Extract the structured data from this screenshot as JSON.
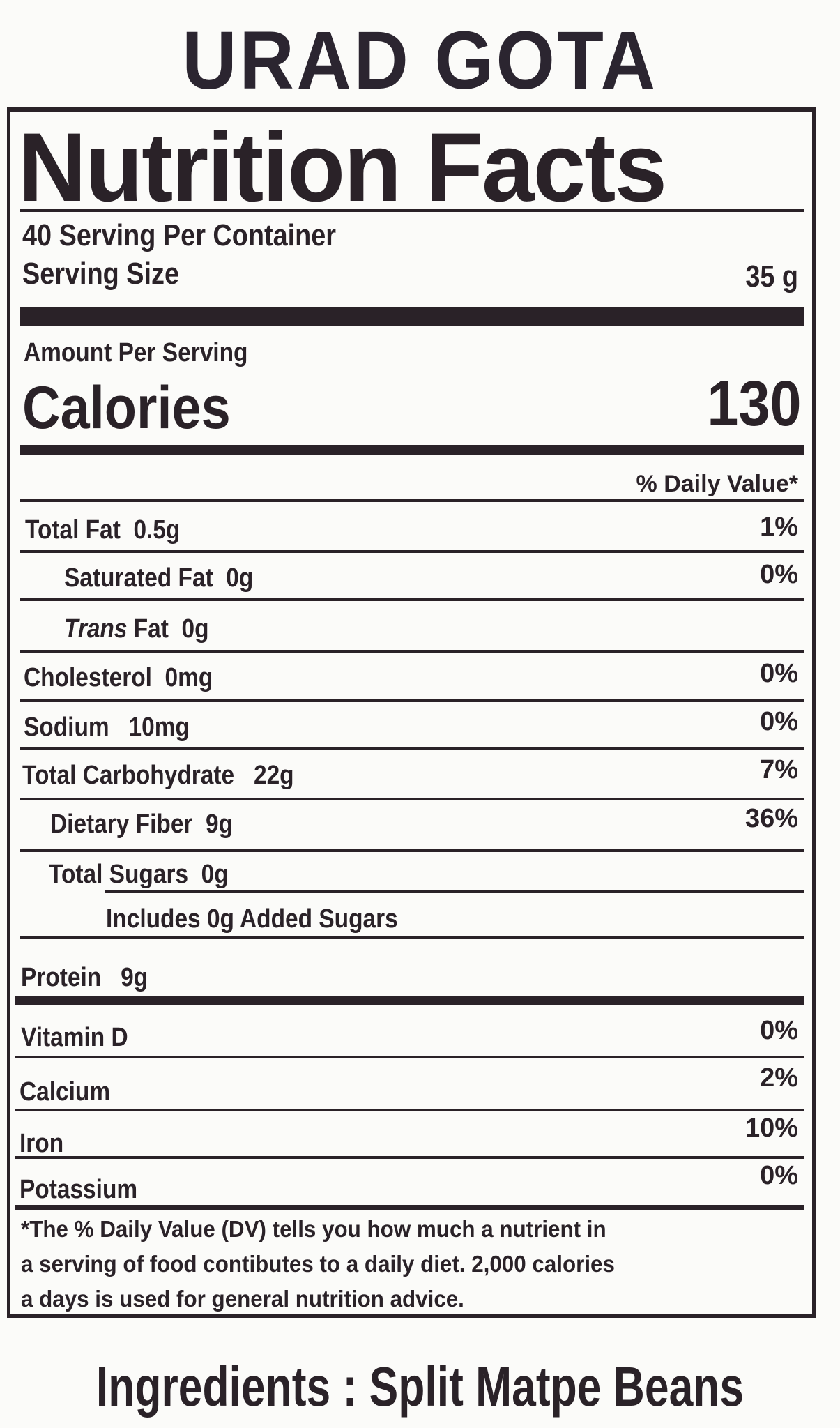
{
  "product_name": "URAD GOTA",
  "label": {
    "heading": "Nutrition Facts",
    "servings_per_container": "40 Serving Per Container",
    "serving_size_label": "Serving Size",
    "serving_size_value": "35 g",
    "amount_per_serving": "Amount Per Serving",
    "calories_label": "Calories",
    "calories_value": "130",
    "daily_value_header": "% Daily Value*",
    "nutrients": [
      {
        "name": "Total Fat",
        "amount": "0.5g",
        "dv": "1%"
      },
      {
        "name": "Saturated Fat",
        "amount": "0g",
        "dv": "0%"
      },
      {
        "name_italic": "Trans",
        "name": "Fat",
        "amount": "0g",
        "dv": ""
      },
      {
        "name": "Cholesterol",
        "amount": "0mg",
        "dv": "0%"
      },
      {
        "name": "Sodium",
        "amount": "10mg",
        "dv": "0%"
      },
      {
        "name": "Total Carbohydrate",
        "amount": "22g",
        "dv": "7%"
      },
      {
        "name": "Dietary Fiber",
        "amount": "9g",
        "dv": "36%"
      },
      {
        "name": "Total Sugars",
        "amount": "0g",
        "dv": ""
      },
      {
        "name": "Includes 0g Added Sugars",
        "amount": "",
        "dv": ""
      },
      {
        "name": "Protein",
        "amount": "9g",
        "dv": ""
      }
    ],
    "vitamins": [
      {
        "name": "Vitamin D",
        "dv": "0%"
      },
      {
        "name": "Calcium",
        "dv": "2%"
      },
      {
        "name": "Iron",
        "dv": "10%"
      },
      {
        "name": "Potassium",
        "dv": "0%"
      }
    ],
    "footnote": [
      "*The % Daily Value (DV) tells you how much a nutrient in",
      "a serving of food contibutes to a daily diet. 2,000 calories",
      "a days is used for general nutrition advice."
    ]
  },
  "ingredients": "Ingredients : Split Matpe Beans"
}
